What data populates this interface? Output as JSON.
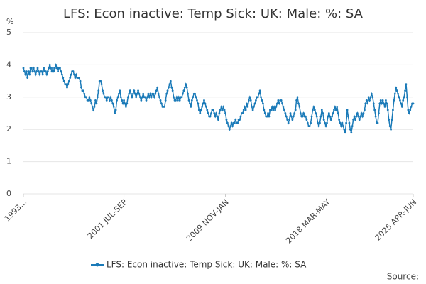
{
  "chart_data": {
    "type": "line",
    "title": "LFS: Econ inactive: Temp Sick: UK: Male: %: SA",
    "y_label": "%",
    "source": "Source:",
    "series": [
      {
        "name": "LFS: Econ inactive: Temp Sick: UK: Male: %: SA",
        "color": "#1a7ab8",
        "values": [
          3.9,
          3.8,
          3.7,
          3.8,
          3.6,
          3.8,
          3.7,
          3.9,
          3.9,
          3.8,
          3.9,
          3.8,
          3.7,
          3.8,
          3.9,
          3.8,
          3.7,
          3.8,
          3.8,
          3.7,
          3.9,
          3.8,
          3.8,
          3.7,
          3.8,
          3.9,
          4.0,
          3.9,
          3.8,
          3.9,
          3.8,
          3.9,
          4.0,
          3.9,
          3.8,
          3.9,
          3.9,
          3.8,
          3.7,
          3.6,
          3.5,
          3.4,
          3.4,
          3.3,
          3.4,
          3.5,
          3.6,
          3.7,
          3.8,
          3.8,
          3.7,
          3.6,
          3.7,
          3.6,
          3.6,
          3.6,
          3.5,
          3.3,
          3.2,
          3.2,
          3.1,
          3.0,
          3.0,
          2.9,
          2.9,
          3.0,
          2.9,
          2.8,
          2.7,
          2.6,
          2.7,
          2.9,
          2.8,
          3.0,
          3.2,
          3.5,
          3.5,
          3.4,
          3.2,
          3.1,
          3.0,
          3.0,
          2.9,
          3.0,
          3.0,
          2.9,
          3.0,
          2.9,
          2.8,
          2.7,
          2.5,
          2.6,
          2.9,
          3.0,
          3.1,
          3.2,
          3.0,
          2.9,
          2.8,
          2.9,
          2.8,
          2.7,
          2.8,
          3.0,
          3.1,
          3.2,
          3.1,
          3.0,
          3.1,
          3.2,
          3.1,
          3.0,
          3.1,
          3.2,
          3.1,
          3.0,
          2.9,
          3.0,
          3.1,
          3.0,
          3.0,
          2.9,
          3.0,
          3.1,
          3.0,
          3.1,
          3.0,
          3.1,
          3.1,
          3.0,
          3.1,
          3.2,
          3.3,
          3.1,
          3.0,
          2.9,
          2.8,
          2.7,
          2.7,
          2.7,
          2.9,
          3.1,
          3.2,
          3.3,
          3.4,
          3.5,
          3.3,
          3.2,
          3.0,
          2.9,
          2.9,
          3.0,
          2.9,
          3.0,
          2.9,
          3.0,
          3.0,
          3.1,
          3.2,
          3.3,
          3.4,
          3.3,
          3.1,
          2.9,
          2.8,
          2.7,
          2.9,
          3.0,
          3.1,
          3.1,
          3.0,
          2.9,
          2.8,
          2.6,
          2.5,
          2.6,
          2.7,
          2.8,
          2.9,
          2.8,
          2.7,
          2.6,
          2.5,
          2.4,
          2.4,
          2.5,
          2.6,
          2.6,
          2.5,
          2.4,
          2.5,
          2.4,
          2.3,
          2.5,
          2.6,
          2.7,
          2.6,
          2.7,
          2.6,
          2.5,
          2.3,
          2.2,
          2.1,
          2.0,
          2.1,
          2.2,
          2.1,
          2.2,
          2.2,
          2.3,
          2.2,
          2.2,
          2.3,
          2.3,
          2.4,
          2.5,
          2.5,
          2.6,
          2.7,
          2.6,
          2.8,
          2.7,
          2.9,
          3.0,
          2.9,
          2.7,
          2.6,
          2.7,
          2.8,
          2.9,
          3.0,
          3.0,
          3.1,
          3.2,
          3.0,
          2.9,
          2.8,
          2.6,
          2.5,
          2.4,
          2.4,
          2.5,
          2.4,
          2.6,
          2.6,
          2.7,
          2.6,
          2.7,
          2.6,
          2.7,
          2.8,
          2.9,
          2.8,
          2.9,
          2.9,
          2.8,
          2.7,
          2.6,
          2.5,
          2.4,
          2.3,
          2.2,
          2.3,
          2.5,
          2.4,
          2.3,
          2.4,
          2.5,
          2.6,
          2.9,
          3.0,
          2.8,
          2.7,
          2.5,
          2.4,
          2.4,
          2.5,
          2.4,
          2.4,
          2.3,
          2.2,
          2.1,
          2.1,
          2.2,
          2.4,
          2.6,
          2.7,
          2.6,
          2.5,
          2.4,
          2.2,
          2.1,
          2.2,
          2.4,
          2.6,
          2.5,
          2.3,
          2.2,
          2.1,
          2.2,
          2.4,
          2.5,
          2.4,
          2.3,
          2.4,
          2.5,
          2.6,
          2.7,
          2.6,
          2.7,
          2.5,
          2.3,
          2.2,
          2.1,
          2.2,
          2.1,
          2.0,
          1.9,
          2.2,
          2.6,
          2.4,
          2.2,
          2.0,
          1.9,
          2.1,
          2.3,
          2.4,
          2.3,
          2.4,
          2.5,
          2.4,
          2.3,
          2.4,
          2.5,
          2.4,
          2.5,
          2.6,
          2.8,
          2.9,
          2.8,
          3.0,
          2.9,
          3.0,
          3.1,
          3.0,
          2.8,
          2.6,
          2.4,
          2.2,
          2.2,
          2.5,
          2.8,
          2.9,
          2.8,
          2.9,
          2.8,
          2.7,
          2.9,
          2.8,
          2.6,
          2.3,
          2.1,
          2.0,
          2.3,
          2.6,
          2.9,
          3.1,
          3.3,
          3.2,
          3.1,
          3.0,
          2.9,
          2.8,
          2.7,
          2.9,
          3.0,
          3.2,
          3.4,
          3.0,
          2.6,
          2.5,
          2.6,
          2.7,
          2.8,
          2.8
        ]
      }
    ],
    "xlim": [
      0,
      384
    ],
    "xticks": [
      {
        "value": 0,
        "label": "1993..."
      },
      {
        "value": 99,
        "label": "2001 JUL-SEP"
      },
      {
        "value": 199,
        "label": "2009 NOV-JAN"
      },
      {
        "value": 299,
        "label": "2018 MAR-MAY"
      },
      {
        "value": 384,
        "label": "2025 APR-JUN"
      }
    ],
    "ylim": [
      0,
      5
    ],
    "yticks": [
      0,
      1,
      2,
      3,
      4,
      5
    ],
    "grid": true
  }
}
